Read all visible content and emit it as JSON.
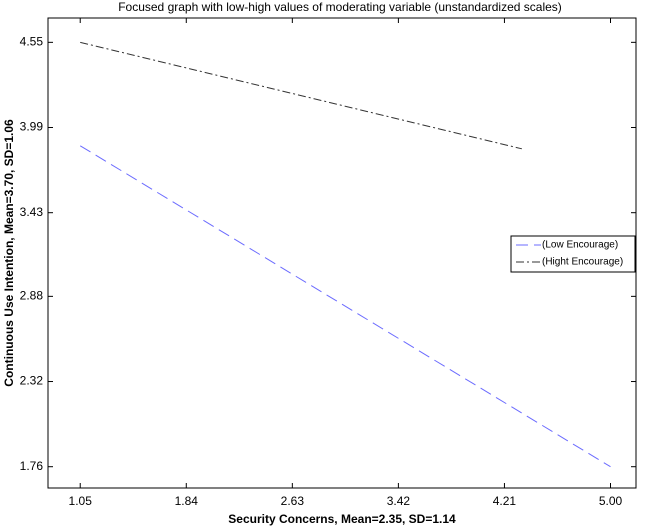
{
  "chart_data": {
    "type": "line",
    "title": "Focused graph with low-high values of moderating variable (unstandardized scales)",
    "x_label": "Security Concerns, Mean=2.35, SD=1.14",
    "y_label": "Continuous Use Intention, Mean=3.70, SD=1.06",
    "xlim": [
      0.81,
      5.19
    ],
    "xticks": [
      {
        "value": 1.05,
        "label": "1.05"
      },
      {
        "value": 1.84,
        "label": "1.84"
      },
      {
        "value": 2.63,
        "label": "2.63"
      },
      {
        "value": 3.42,
        "label": "3.42"
      },
      {
        "value": 4.21,
        "label": "4.21"
      },
      {
        "value": 5.0,
        "label": "5.00"
      }
    ],
    "ylim": [
      1.62,
      4.71
    ],
    "yticks": [
      1.76,
      2.32,
      2.88,
      3.43,
      3.99,
      4.55
    ],
    "legend": "right",
    "series": [
      {
        "name": "(Low Encourage)",
        "color": "#6b6bff",
        "dash": "dashed",
        "x": [
          1.05,
          5.0
        ],
        "values": [
          3.87,
          1.76
        ]
      },
      {
        "name": "(Hight Encourage)",
        "color": "#333333",
        "dash": "dashdot",
        "x": [
          1.05,
          4.34
        ],
        "values": [
          4.55,
          3.85
        ]
      }
    ]
  }
}
